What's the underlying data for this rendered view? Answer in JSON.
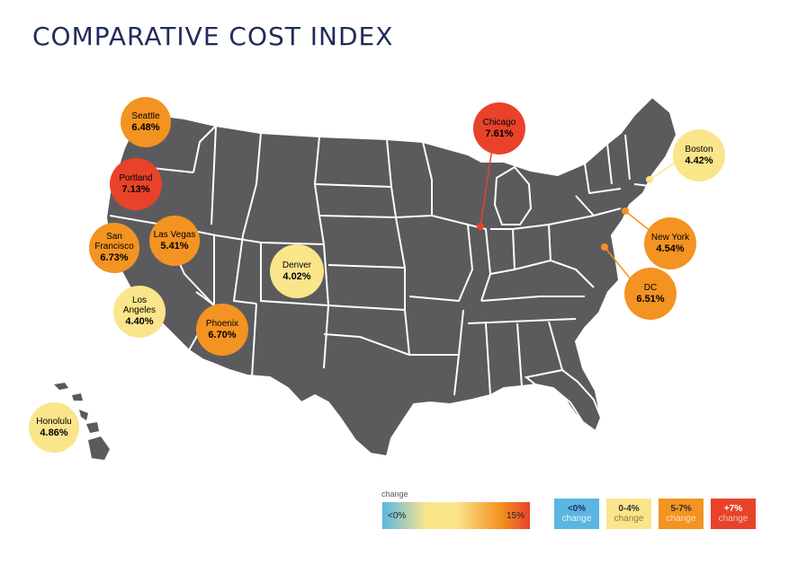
{
  "title": "COMPARATIVE COST INDEX",
  "colors": {
    "map_fill": "#5b5b5e",
    "border": "#ffffff",
    "title": "#1f2b5c",
    "lt0": "#5bb6e2",
    "c0_4": "#fbe58b",
    "c5_7": "#f39321",
    "c7plus": "#e8432a"
  },
  "cities": [
    {
      "name": "Seattle",
      "pct": "6.48%",
      "tier": "5-7%"
    },
    {
      "name": "Portland",
      "pct": "7.13%",
      "tier": "+7%"
    },
    {
      "name": "San Francisco",
      "pct": "6.73%",
      "tier": "5-7%"
    },
    {
      "name": "Las Vegas",
      "pct": "5.41%",
      "tier": "5-7%"
    },
    {
      "name": "Los Angeles",
      "pct": "4.40%",
      "tier": "0-4%"
    },
    {
      "name": "Phoenix",
      "pct": "6.70%",
      "tier": "5-7%"
    },
    {
      "name": "Denver",
      "pct": "4.02%",
      "tier": "0-4%"
    },
    {
      "name": "Chicago",
      "pct": "7.61%",
      "tier": "+7%"
    },
    {
      "name": "Boston",
      "pct": "4.42%",
      "tier": "0-4%"
    },
    {
      "name": "New York",
      "pct": "4.54%",
      "tier": "0-4%"
    },
    {
      "name": "DC",
      "pct": "6.51%",
      "tier": "5-7%"
    },
    {
      "name": "Honolulu",
      "pct": "4.86%",
      "tier": "0-4%"
    }
  ],
  "legend": {
    "label": "change",
    "gradient_low": "<0%",
    "gradient_high": "15%",
    "keys": [
      {
        "range": "<0%",
        "text": "change"
      },
      {
        "range": "0-4%",
        "text": "change"
      },
      {
        "range": "5-7%",
        "text": "change"
      },
      {
        "range": "+7%",
        "text": "change"
      }
    ]
  }
}
